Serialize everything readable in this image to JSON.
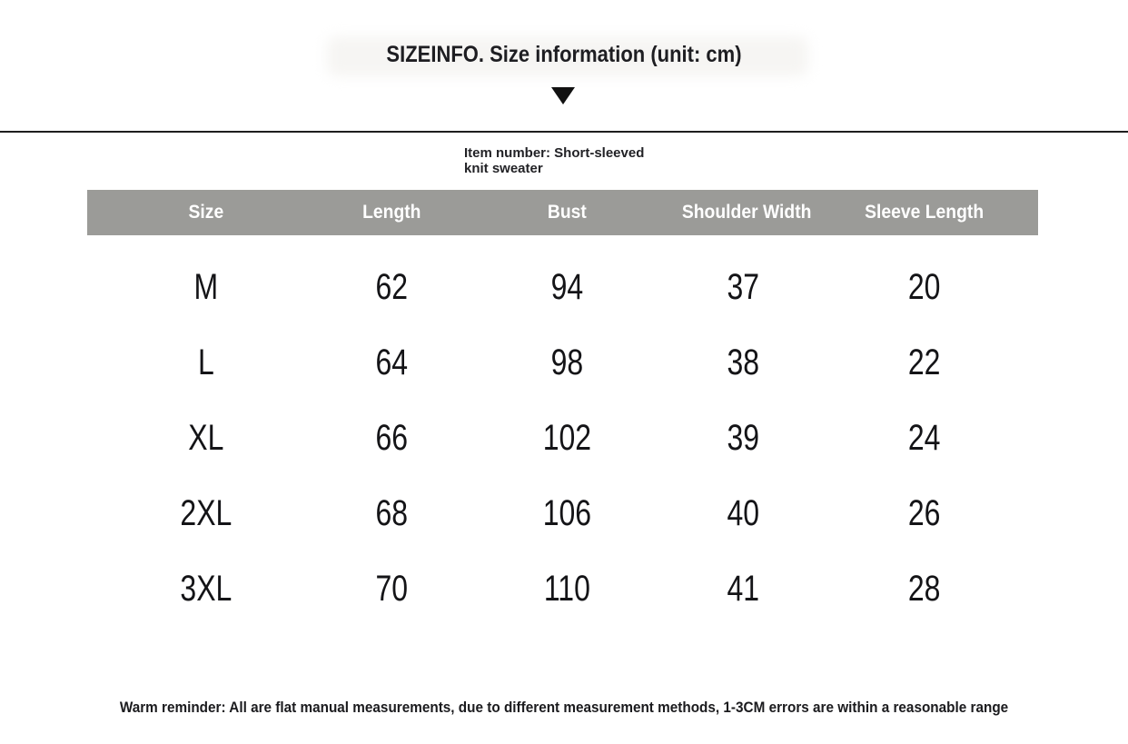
{
  "colors": {
    "header_bg": "#9b9b98",
    "header_text": "#ffffff",
    "text_primary": "#1d1d1f",
    "divider": "#1e1e1e",
    "arrow": "#111111"
  },
  "header": {
    "title": "SIZEINFO. Size information (unit: cm)"
  },
  "item_note": {
    "lines": [
      "Item number: Short-sleeved",
      "knit sweater"
    ]
  },
  "chart_data": {
    "type": "table",
    "title": "SIZEINFO. Size information (unit: cm)",
    "unit": "cm",
    "columns": [
      "Size",
      "Length",
      "Bust",
      "Shoulder Width",
      "Sleeve Length"
    ],
    "rows": [
      [
        "M",
        "62",
        "94",
        "37",
        "20"
      ],
      [
        "L",
        "64",
        "98",
        "38",
        "22"
      ],
      [
        "XL",
        "66",
        "102",
        "39",
        "24"
      ],
      [
        "2XL",
        "68",
        "106",
        "40",
        "26"
      ],
      [
        "3XL",
        "70",
        "110",
        "41",
        "28"
      ]
    ]
  },
  "footer": {
    "note": "Warm reminder: All are flat manual measurements, due to different measurement methods, 1-3CM errors are within a reasonable range"
  }
}
